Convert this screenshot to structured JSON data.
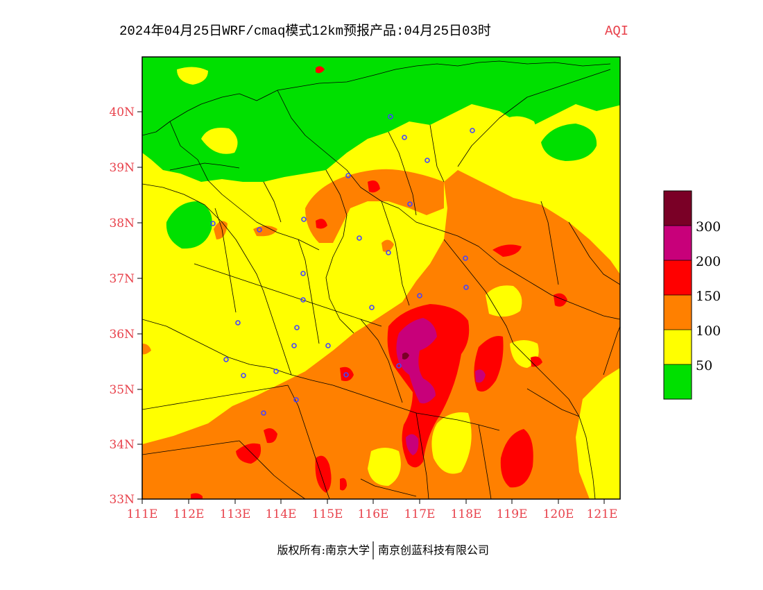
{
  "title": {
    "text": "2024年04月25日WRF/cmaq模式12km预报产品:04月25日03时",
    "indicator": "AQI"
  },
  "axes": {
    "lat_labels": [
      "40N",
      "39N",
      "38N",
      "37N",
      "36N",
      "35N",
      "34N",
      "33N"
    ],
    "lon_labels": [
      "111E",
      "112E",
      "113E",
      "114E",
      "115E",
      "116E",
      "117E",
      "118E",
      "119E",
      "120E",
      "121E"
    ]
  },
  "legend": {
    "labels": [
      "300",
      "200",
      "150",
      "100",
      "50"
    ],
    "colors": [
      "#7a0026",
      "#c8007a",
      "#ff0000",
      "#ff8000",
      "#ffff00",
      "#00e000"
    ]
  },
  "footer": {
    "left": "版权所有:南京大学",
    "right": "南京创蓝科技有限公司"
  },
  "colors": {
    "green": "#00e000",
    "yellow": "#ffff00",
    "orange": "#ff8000",
    "red": "#ff0000",
    "magenta": "#c8007a",
    "maroon": "#7a0026",
    "label_red": "#e8414b",
    "city_marker": "#4444ff"
  }
}
